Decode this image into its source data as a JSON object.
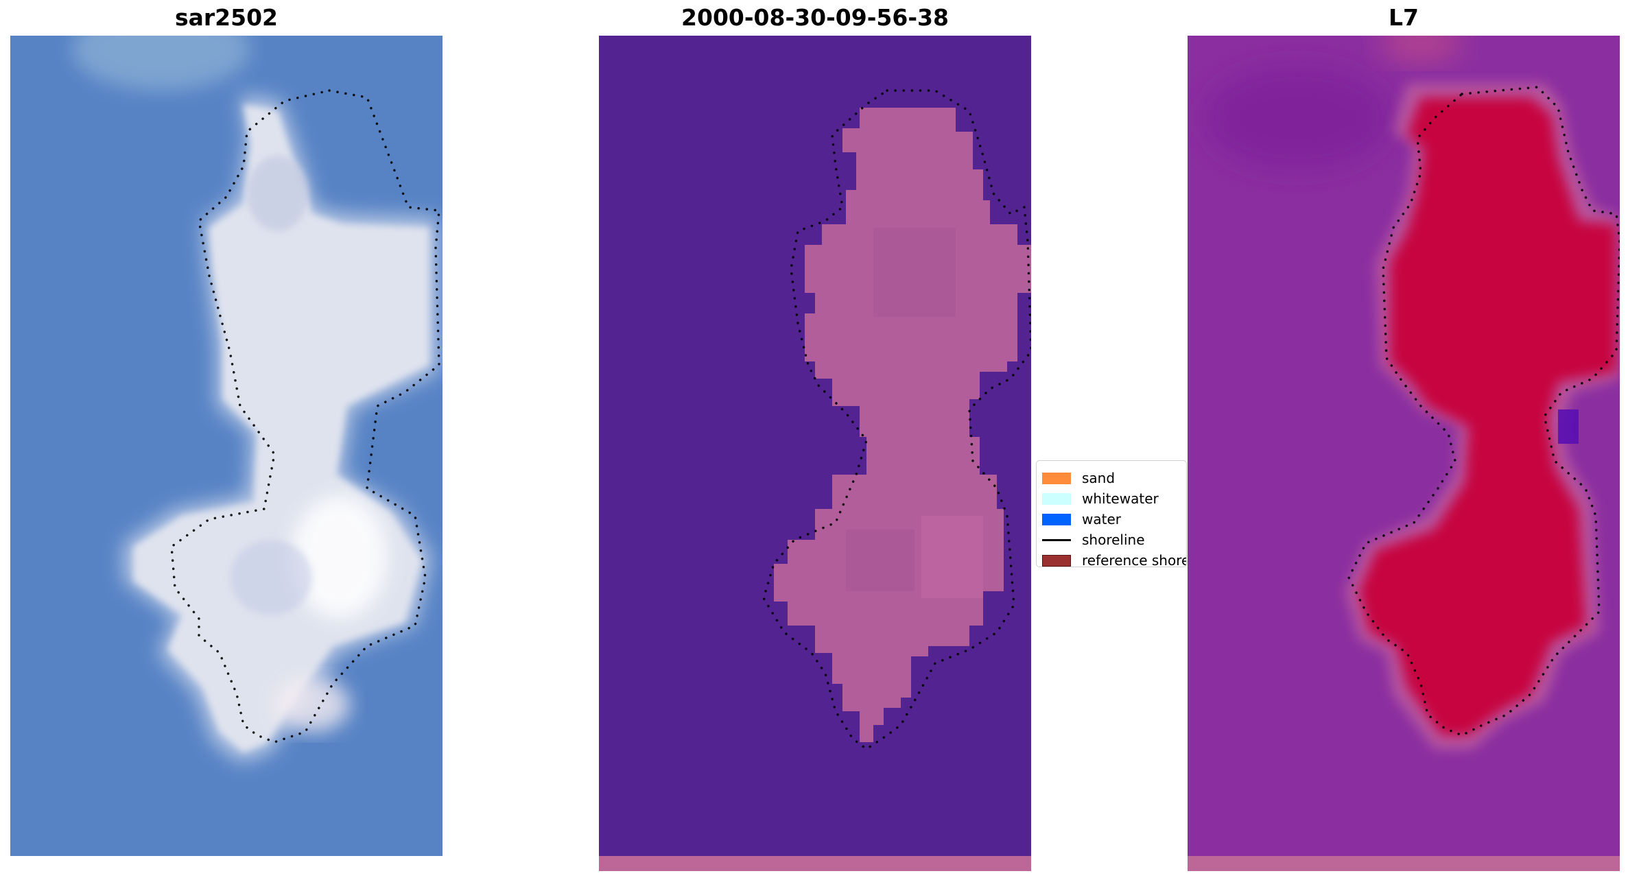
{
  "panels": {
    "left": {
      "title": "sar2502",
      "content": "rgb-satellite-image"
    },
    "middle": {
      "title": "2000-08-30-09-56-38",
      "content": "classified-image"
    },
    "right": {
      "title": "L7",
      "content": "water-index-image"
    }
  },
  "legend": {
    "items": [
      {
        "label": "sand",
        "type": "patch",
        "color": "#ff8c3b"
      },
      {
        "label": "whitewater",
        "type": "patch",
        "color": "#ccffff"
      },
      {
        "label": "water",
        "type": "patch",
        "color": "#0062ff"
      },
      {
        "label": "shoreline",
        "type": "line",
        "color": "#000000"
      },
      {
        "label": "reference shoreline",
        "type": "patch",
        "color": "#9b3030"
      }
    ]
  },
  "colors": {
    "rgb_water": "#5b86c6",
    "rgb_sand": "#dfe3ee",
    "class_water": "#532392",
    "class_sand": "#b25e9a",
    "index_water": "#8b2fa0",
    "index_sand": "#c8003a",
    "bottom_strip": "#bd6698",
    "shoreline_dots": "#000000"
  }
}
